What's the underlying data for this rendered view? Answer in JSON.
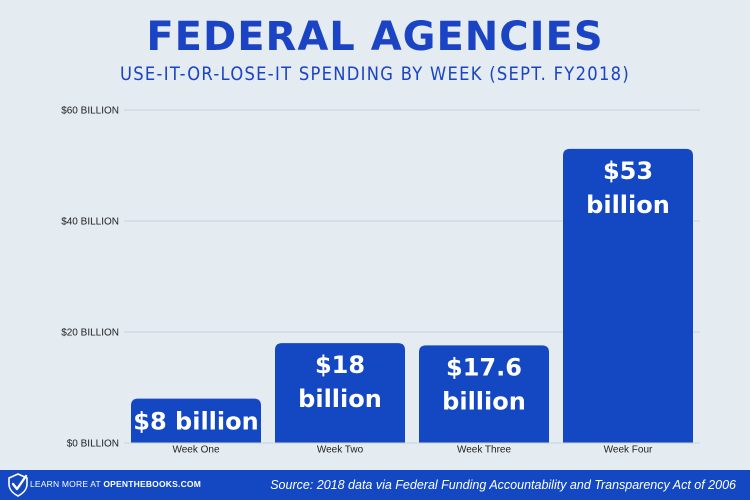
{
  "title": "FEDERAL AGENCIES",
  "subtitle": "USE-IT-OR-LOSE-IT SPENDING BY WEEK (SEPT. FY2018)",
  "colors": {
    "bar": "#1448c2",
    "title": "#1a44c4",
    "background": "#e4ebf1",
    "footer": "#1448c2"
  },
  "chart_data": {
    "type": "bar",
    "title": "FEDERAL AGENCIES",
    "subtitle": "USE-IT-OR-LOSE-IT SPENDING BY WEEK (SEPT. FY2018)",
    "categories": [
      "Week One",
      "Week Two",
      "Week Three",
      "Week Four"
    ],
    "values": [
      8,
      18,
      17.6,
      53
    ],
    "value_unit": "billion USD",
    "data_labels": [
      [
        "$8 billion"
      ],
      [
        "$18",
        "billion"
      ],
      [
        "$17.6",
        "billion"
      ],
      [
        "$53",
        "billion"
      ]
    ],
    "yticks": [
      {
        "value": 0,
        "label": "$0 BILLION"
      },
      {
        "value": 20,
        "label": "$20 BILLION"
      },
      {
        "value": 40,
        "label": "$40 BILLION"
      },
      {
        "value": 60,
        "label": "$60 BILLION"
      }
    ],
    "ylim": [
      0,
      60
    ],
    "grid": true,
    "legend": "none"
  },
  "footer": {
    "learn_prefix": "LEARN MORE AT ",
    "learn_site": "OPENTHEBOOKS.COM",
    "check_icon": "check-shield-icon",
    "source": "Source: 2018 data via Federal Funding Accountability and Transparency Act of 2006"
  }
}
